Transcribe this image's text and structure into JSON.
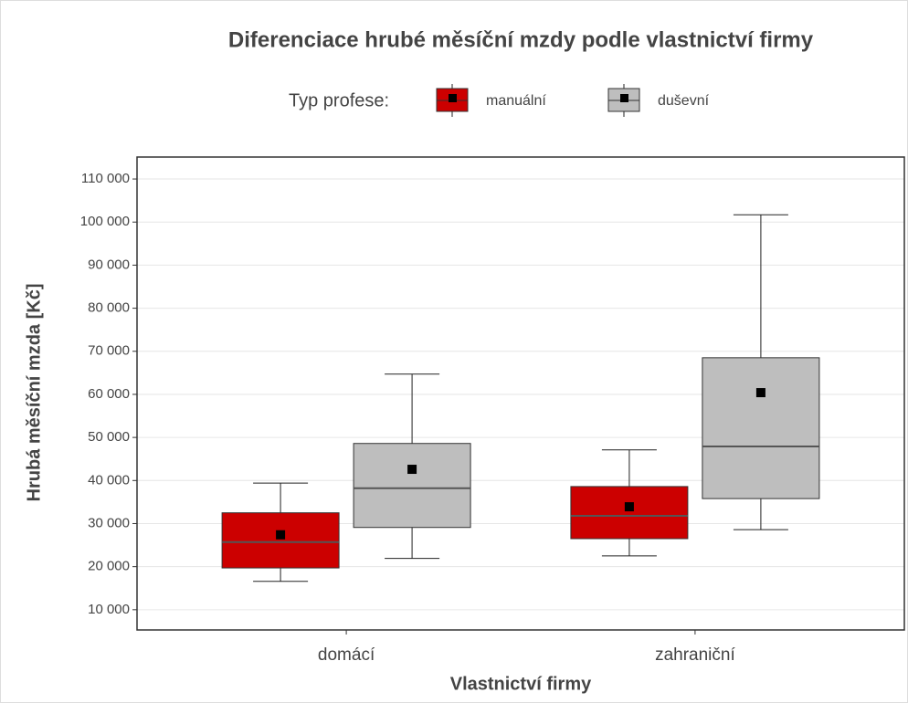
{
  "chart_data": {
    "type": "box",
    "title": "Diferenciace hrubé měsíční mzdy podle vlastnictví firmy",
    "legend_title": "Typ profese:",
    "x_label": "Vlastnictví firmy",
    "y_label": "Hrubá měsíční mzda [Kč]",
    "categories": [
      "domácí",
      "zahraniční"
    ],
    "series": [
      {
        "name": "manuální",
        "color": "#cc0000",
        "values": [
          {
            "low": 16600,
            "q1": 19700,
            "median": 25700,
            "q3": 32500,
            "high": 39400,
            "mean": 27400
          },
          {
            "low": 22500,
            "q1": 26500,
            "median": 31800,
            "q3": 38600,
            "high": 47100,
            "mean": 33900
          }
        ]
      },
      {
        "name": "duševní",
        "color": "#bebebe",
        "values": [
          {
            "low": 21900,
            "q1": 29100,
            "median": 38200,
            "q3": 48600,
            "high": 64700,
            "mean": 42600
          },
          {
            "low": 28600,
            "q1": 35800,
            "median": 47900,
            "q3": 68500,
            "high": 101700,
            "mean": 60400
          }
        ]
      }
    ],
    "ylim": [
      5300,
      115100
    ],
    "yticks": [
      {
        "value": 10000,
        "label": "10 000"
      },
      {
        "value": 20000,
        "label": "20 000"
      },
      {
        "value": 30000,
        "label": "30 000"
      },
      {
        "value": 40000,
        "label": "40 000"
      },
      {
        "value": 50000,
        "label": "50 000"
      },
      {
        "value": 60000,
        "label": "60 000"
      },
      {
        "value": 70000,
        "label": "70 000"
      },
      {
        "value": 80000,
        "label": "80 000"
      },
      {
        "value": 90000,
        "label": "90 000"
      },
      {
        "value": 100000,
        "label": "100 000"
      },
      {
        "value": 110000,
        "label": "110 000"
      }
    ],
    "grid": true
  }
}
